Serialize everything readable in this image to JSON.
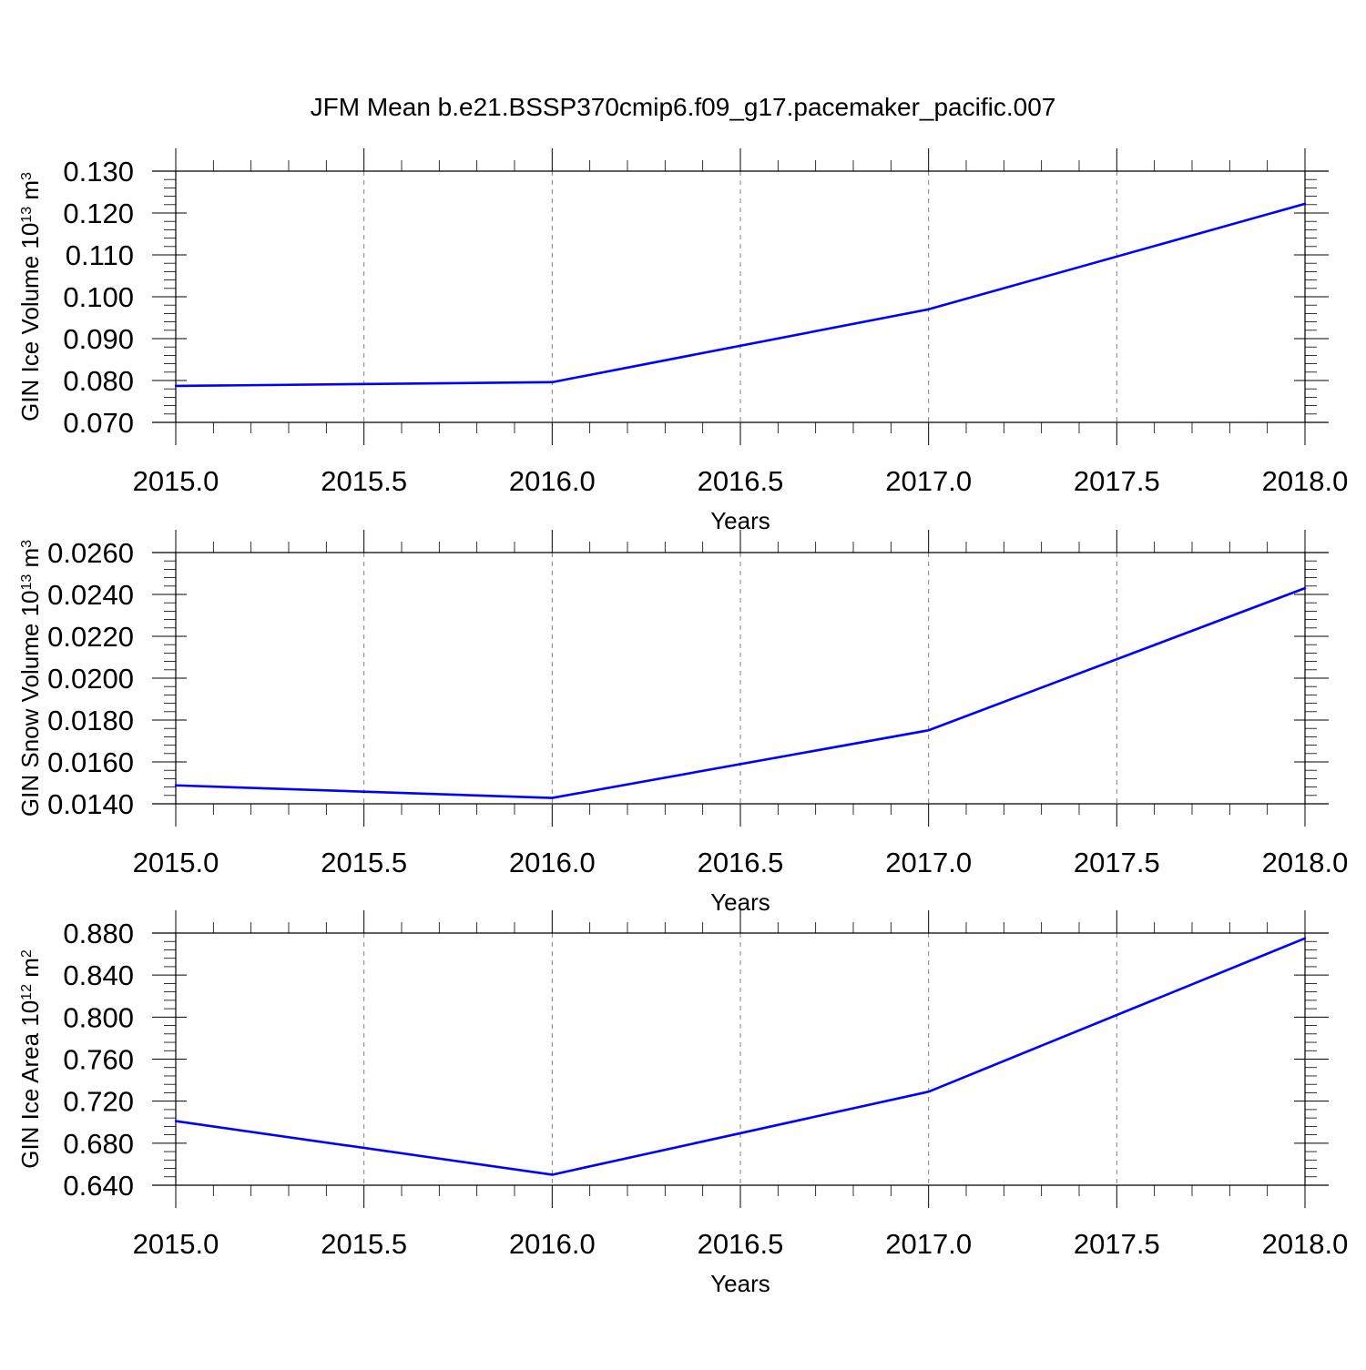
{
  "title": "JFM Mean b.e21.BSSP370cmip6.f09_g17.pacemaker_pacific.007",
  "colors": {
    "line": "#0000ff",
    "axis": "#000000",
    "grid": "#808080",
    "background": "#ffffff"
  },
  "chart_data": [
    {
      "type": "line",
      "x": [
        2015,
        2016,
        2017,
        2018
      ],
      "series": [
        {
          "values": [
            0.0787,
            0.0796,
            0.097,
            0.1222
          ]
        }
      ],
      "ylabel": {
        "main": "GIN Ice Volume 10",
        "sup": "13",
        "mid": " m",
        "sup2": "3"
      },
      "xlabel": "Years",
      "xlim": [
        2015,
        2018
      ],
      "ylim": [
        0.07,
        0.13
      ],
      "xticks": [
        "2015.0",
        "2015.5",
        "2016.0",
        "2016.5",
        "2017.0",
        "2017.5",
        "2018.0"
      ],
      "xtick_values": [
        2015,
        2015.5,
        2016,
        2016.5,
        2017,
        2017.5,
        2018
      ],
      "yticks": [
        "0.070",
        "0.080",
        "0.090",
        "0.100",
        "0.110",
        "0.120",
        "0.130"
      ],
      "ytick_values": [
        0.07,
        0.08,
        0.09,
        0.1,
        0.11,
        0.12,
        0.13
      ],
      "vertical_grid": true
    },
    {
      "type": "line",
      "x": [
        2015,
        2016,
        2017,
        2018
      ],
      "series": [
        {
          "values": [
            0.01488,
            0.01428,
            0.01751,
            0.0243
          ]
        }
      ],
      "ylabel": {
        "main": "GIN Snow Volume 10",
        "sup": "13",
        "mid": " m",
        "sup2": "3"
      },
      "xlabel": "Years",
      "xlim": [
        2015,
        2018
      ],
      "ylim": [
        0.014,
        0.026
      ],
      "xticks": [
        "2015.0",
        "2015.5",
        "2016.0",
        "2016.5",
        "2017.0",
        "2017.5",
        "2018.0"
      ],
      "xtick_values": [
        2015,
        2015.5,
        2016,
        2016.5,
        2017,
        2017.5,
        2018
      ],
      "yticks": [
        "0.0140",
        "0.0160",
        "0.0180",
        "0.0200",
        "0.0220",
        "0.0240",
        "0.0260"
      ],
      "ytick_values": [
        0.014,
        0.016,
        0.018,
        0.02,
        0.022,
        0.024,
        0.026
      ],
      "vertical_grid": true
    },
    {
      "type": "line",
      "x": [
        2015,
        2016,
        2017,
        2018
      ],
      "series": [
        {
          "values": [
            0.701,
            0.65,
            0.729,
            0.875
          ]
        }
      ],
      "ylabel": {
        "main": "GIN Ice Area 10",
        "sup": "12",
        "mid": " m",
        "sup2": "2"
      },
      "xlabel": "Years",
      "xlim": [
        2015,
        2018
      ],
      "ylim": [
        0.64,
        0.88
      ],
      "xticks": [
        "2015.0",
        "2015.5",
        "2016.0",
        "2016.5",
        "2017.0",
        "2017.5",
        "2018.0"
      ],
      "xtick_values": [
        2015,
        2015.5,
        2016,
        2016.5,
        2017,
        2017.5,
        2018
      ],
      "yticks": [
        "0.640",
        "0.680",
        "0.720",
        "0.760",
        "0.800",
        "0.840",
        "0.880"
      ],
      "ytick_values": [
        0.64,
        0.68,
        0.72,
        0.76,
        0.8,
        0.84,
        0.88
      ],
      "vertical_grid": true
    }
  ]
}
